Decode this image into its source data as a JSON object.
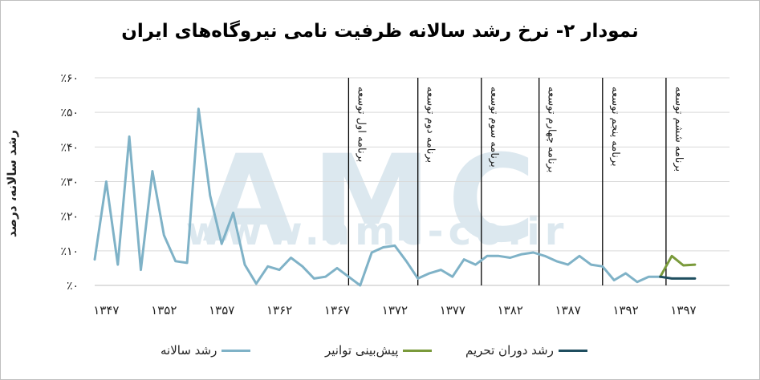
{
  "title": "نمودار ۲- نرخ رشد سالانه ظرفیت نامی نیروگاه‌های ایران",
  "ylabel": "رشد سالانه، درصد",
  "watermark": {
    "logo": "AMC",
    "url": "www.amc-co.ir"
  },
  "colors": {
    "growth": "#7fb2c7",
    "forecast": "#7a9a3b",
    "sanctions": "#1f4e5f",
    "watermark": "#dce8ef",
    "grid": "#d9d9d9"
  },
  "chart_data": {
    "type": "line",
    "title": "نمودار ۲- نرخ رشد سالانه ظرفیت نامی نیروگاه‌های ایران",
    "xlabel": "",
    "ylabel": "رشد سالانه، درصد",
    "xlim": [
      1346,
      1401
    ],
    "ylim": [
      0,
      0.6
    ],
    "y_ticks": [
      {
        "v": 0,
        "label": "٪۰"
      },
      {
        "v": 0.1,
        "label": "٪۱۰"
      },
      {
        "v": 0.2,
        "label": "٪۲۰"
      },
      {
        "v": 0.3,
        "label": "٪۳۰"
      },
      {
        "v": 0.4,
        "label": "٪۴۰"
      },
      {
        "v": 0.5,
        "label": "٪۵۰"
      },
      {
        "v": 0.6,
        "label": "٪۶۰"
      }
    ],
    "x_ticks": [
      {
        "v": 1347,
        "label": "۱۳۴۷"
      },
      {
        "v": 1352,
        "label": "۱۳۵۲"
      },
      {
        "v": 1357,
        "label": "۱۳۵۷"
      },
      {
        "v": 1362,
        "label": "۱۳۶۲"
      },
      {
        "v": 1367,
        "label": "۱۳۶۷"
      },
      {
        "v": 1372,
        "label": "۱۳۷۲"
      },
      {
        "v": 1377,
        "label": "۱۳۷۷"
      },
      {
        "v": 1382,
        "label": "۱۳۸۲"
      },
      {
        "v": 1387,
        "label": "۱۳۸۷"
      },
      {
        "v": 1392,
        "label": "۱۳۹۲"
      },
      {
        "v": 1397,
        "label": "۱۳۹۷"
      }
    ],
    "grid": true,
    "legend_position": "bottom",
    "plans": [
      {
        "x": 1368,
        "label": "برنامه اول توسعه"
      },
      {
        "x": 1374,
        "label": "برنامه دوم توسعه"
      },
      {
        "x": 1379.5,
        "label": "برنامه سوم توسعه"
      },
      {
        "x": 1384.5,
        "label": "برنامه چهارم توسعه"
      },
      {
        "x": 1390,
        "label": "برنامه پنجم توسعه"
      },
      {
        "x": 1395.5,
        "label": "برنامه ششم توسعه"
      }
    ],
    "series": [
      {
        "name": "رشد سالانه",
        "color_key": "growth",
        "points": [
          [
            1346,
            0.075
          ],
          [
            1347,
            0.3
          ],
          [
            1348,
            0.06
          ],
          [
            1349,
            0.43
          ],
          [
            1350,
            0.045
          ],
          [
            1351,
            0.33
          ],
          [
            1352,
            0.145
          ],
          [
            1353,
            0.07
          ],
          [
            1354,
            0.065
          ],
          [
            1355,
            0.51
          ],
          [
            1356,
            0.26
          ],
          [
            1357,
            0.12
          ],
          [
            1358,
            0.21
          ],
          [
            1359,
            0.06
          ],
          [
            1360,
            0.005
          ],
          [
            1361,
            0.055
          ],
          [
            1362,
            0.045
          ],
          [
            1363,
            0.08
          ],
          [
            1364,
            0.055
          ],
          [
            1365,
            0.02
          ],
          [
            1366,
            0.025
          ],
          [
            1367,
            0.05
          ],
          [
            1368,
            0.025
          ],
          [
            1369,
            0.0
          ],
          [
            1370,
            0.095
          ],
          [
            1371,
            0.11
          ],
          [
            1372,
            0.115
          ],
          [
            1373,
            0.07
          ],
          [
            1374,
            0.02
          ],
          [
            1375,
            0.035
          ],
          [
            1376,
            0.045
          ],
          [
            1377,
            0.025
          ],
          [
            1378,
            0.075
          ],
          [
            1379,
            0.06
          ],
          [
            1380,
            0.085
          ],
          [
            1381,
            0.085
          ],
          [
            1382,
            0.08
          ],
          [
            1383,
            0.09
          ],
          [
            1384,
            0.095
          ],
          [
            1385,
            0.085
          ],
          [
            1386,
            0.07
          ],
          [
            1387,
            0.06
          ],
          [
            1388,
            0.085
          ],
          [
            1389,
            0.06
          ],
          [
            1390,
            0.055
          ],
          [
            1391,
            0.015
          ],
          [
            1392,
            0.035
          ],
          [
            1393,
            0.01
          ],
          [
            1394,
            0.025
          ],
          [
            1395,
            0.025
          ]
        ]
      },
      {
        "name": "پیش‌بینی توانیر",
        "color_key": "forecast",
        "points": [
          [
            1395,
            0.025
          ],
          [
            1396,
            0.085
          ],
          [
            1397,
            0.058
          ],
          [
            1398,
            0.06
          ]
        ]
      },
      {
        "name": "رشد دوران تحریم",
        "color_key": "sanctions",
        "points": [
          [
            1395,
            0.025
          ],
          [
            1396,
            0.02
          ],
          [
            1397,
            0.02
          ],
          [
            1398,
            0.02
          ]
        ]
      }
    ]
  }
}
